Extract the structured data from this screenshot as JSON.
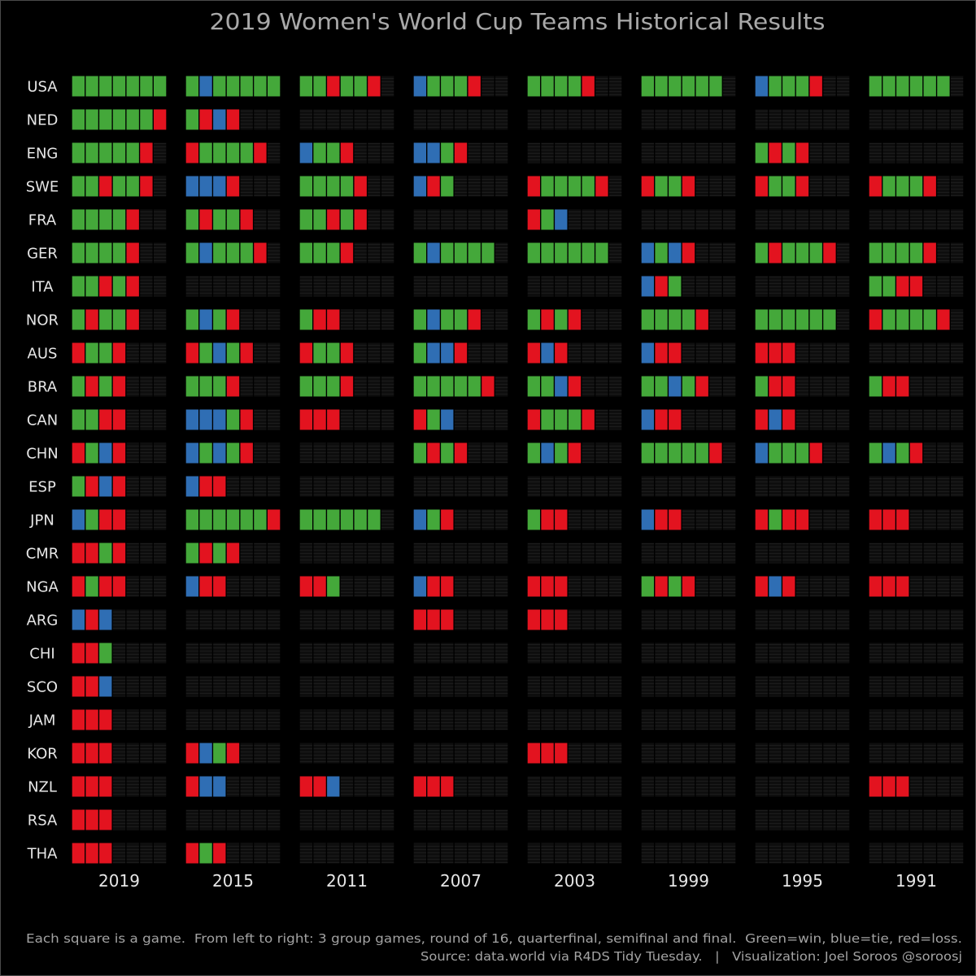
{
  "footer": {
    "note": "Each square is a game.  From left to right: 3 group games, round of 16, quarterfinal, semifinal and final.  Green=win, blue=tie, red=loss.",
    "credit": "Source: data.world via R4DS Tidy Tuesday.   |   Visualization: Joel Soroos @soroosj"
  },
  "colors": {
    "win": "#44a83a",
    "tie": "#2f6eb4",
    "loss": "#e3131f",
    "background": "#000000",
    "title": "#a9a9a9",
    "label": "#e6e6e6",
    "footer": "#a3a3a3"
  },
  "chart_data": {
    "type": "heatmap",
    "title": "2019 Women's World Cup Teams Historical Results",
    "years": [
      "2019",
      "2015",
      "2011",
      "2007",
      "2003",
      "1999",
      "1995",
      "1991"
    ],
    "teams": [
      {
        "name": "USA",
        "results": {
          "2019": [
            "win",
            "win",
            "win",
            "win",
            "win",
            "win",
            "win"
          ],
          "2015": [
            "win",
            "tie",
            "win",
            "win",
            "win",
            "win",
            "win"
          ],
          "2011": [
            "win",
            "win",
            "loss",
            "win",
            "win",
            "loss"
          ],
          "2007": [
            "tie",
            "win",
            "win",
            "win",
            "loss"
          ],
          "2003": [
            "win",
            "win",
            "win",
            "win",
            "loss"
          ],
          "1999": [
            "win",
            "win",
            "win",
            "win",
            "win",
            "win"
          ],
          "1995": [
            "tie",
            "win",
            "win",
            "win",
            "loss"
          ],
          "1991": [
            "win",
            "win",
            "win",
            "win",
            "win",
            "win"
          ]
        }
      },
      {
        "name": "NED",
        "results": {
          "2019": [
            "win",
            "win",
            "win",
            "win",
            "win",
            "win",
            "loss"
          ],
          "2015": [
            "win",
            "loss",
            "tie",
            "loss"
          ]
        }
      },
      {
        "name": "ENG",
        "results": {
          "2019": [
            "win",
            "win",
            "win",
            "win",
            "win",
            "loss"
          ],
          "2015": [
            "loss",
            "win",
            "win",
            "win",
            "win",
            "loss"
          ],
          "2011": [
            "tie",
            "win",
            "win",
            "loss"
          ],
          "2007": [
            "tie",
            "tie",
            "win",
            "loss"
          ],
          "1995": [
            "win",
            "loss",
            "win",
            "loss"
          ]
        }
      },
      {
        "name": "SWE",
        "results": {
          "2019": [
            "win",
            "win",
            "loss",
            "win",
            "win",
            "loss"
          ],
          "2015": [
            "tie",
            "tie",
            "tie",
            "loss"
          ],
          "2011": [
            "win",
            "win",
            "win",
            "win",
            "loss"
          ],
          "2007": [
            "tie",
            "loss",
            "win"
          ],
          "2003": [
            "loss",
            "win",
            "win",
            "win",
            "win",
            "loss"
          ],
          "1999": [
            "loss",
            "win",
            "win",
            "loss"
          ],
          "1995": [
            "loss",
            "win",
            "win",
            "loss"
          ],
          "1991": [
            "loss",
            "win",
            "win",
            "win",
            "loss"
          ]
        }
      },
      {
        "name": "FRA",
        "results": {
          "2019": [
            "win",
            "win",
            "win",
            "win",
            "loss"
          ],
          "2015": [
            "win",
            "loss",
            "win",
            "win",
            "loss"
          ],
          "2011": [
            "win",
            "win",
            "loss",
            "win",
            "loss"
          ],
          "2003": [
            "loss",
            "win",
            "tie"
          ]
        }
      },
      {
        "name": "GER",
        "results": {
          "2019": [
            "win",
            "win",
            "win",
            "win",
            "loss"
          ],
          "2015": [
            "win",
            "tie",
            "win",
            "win",
            "win",
            "loss"
          ],
          "2011": [
            "win",
            "win",
            "win",
            "loss"
          ],
          "2007": [
            "win",
            "tie",
            "win",
            "win",
            "win",
            "win"
          ],
          "2003": [
            "win",
            "win",
            "win",
            "win",
            "win",
            "win"
          ],
          "1999": [
            "tie",
            "win",
            "tie",
            "loss"
          ],
          "1995": [
            "win",
            "loss",
            "win",
            "win",
            "win",
            "loss"
          ],
          "1991": [
            "win",
            "win",
            "win",
            "win",
            "loss"
          ]
        }
      },
      {
        "name": "ITA",
        "results": {
          "2019": [
            "win",
            "win",
            "loss",
            "win",
            "loss"
          ],
          "1999": [
            "tie",
            "loss",
            "win"
          ],
          "1991": [
            "win",
            "win",
            "loss",
            "loss"
          ]
        }
      },
      {
        "name": "NOR",
        "results": {
          "2019": [
            "win",
            "loss",
            "win",
            "win",
            "loss"
          ],
          "2015": [
            "win",
            "tie",
            "win",
            "loss"
          ],
          "2011": [
            "win",
            "loss",
            "loss"
          ],
          "2007": [
            "win",
            "tie",
            "win",
            "win",
            "loss"
          ],
          "2003": [
            "win",
            "loss",
            "win",
            "loss"
          ],
          "1999": [
            "win",
            "win",
            "win",
            "win",
            "loss"
          ],
          "1995": [
            "win",
            "win",
            "win",
            "win",
            "win",
            "win"
          ],
          "1991": [
            "loss",
            "win",
            "win",
            "win",
            "win",
            "loss"
          ]
        }
      },
      {
        "name": "AUS",
        "results": {
          "2019": [
            "loss",
            "win",
            "win",
            "loss"
          ],
          "2015": [
            "loss",
            "win",
            "tie",
            "win",
            "loss"
          ],
          "2011": [
            "loss",
            "win",
            "win",
            "loss"
          ],
          "2007": [
            "win",
            "tie",
            "tie",
            "loss"
          ],
          "2003": [
            "loss",
            "tie",
            "loss"
          ],
          "1999": [
            "tie",
            "loss",
            "loss"
          ],
          "1995": [
            "loss",
            "loss",
            "loss"
          ]
        }
      },
      {
        "name": "BRA",
        "results": {
          "2019": [
            "win",
            "loss",
            "win",
            "loss"
          ],
          "2015": [
            "win",
            "win",
            "win",
            "loss"
          ],
          "2011": [
            "win",
            "win",
            "win",
            "loss"
          ],
          "2007": [
            "win",
            "win",
            "win",
            "win",
            "win",
            "loss"
          ],
          "2003": [
            "win",
            "win",
            "tie",
            "loss"
          ],
          "1999": [
            "win",
            "win",
            "tie",
            "win",
            "loss"
          ],
          "1995": [
            "win",
            "loss",
            "loss"
          ],
          "1991": [
            "win",
            "loss",
            "loss"
          ]
        }
      },
      {
        "name": "CAN",
        "results": {
          "2019": [
            "win",
            "win",
            "loss",
            "loss"
          ],
          "2015": [
            "tie",
            "tie",
            "tie",
            "win",
            "loss"
          ],
          "2011": [
            "loss",
            "loss",
            "loss"
          ],
          "2007": [
            "loss",
            "win",
            "tie"
          ],
          "2003": [
            "loss",
            "win",
            "win",
            "win",
            "loss"
          ],
          "1999": [
            "tie",
            "loss",
            "loss"
          ],
          "1995": [
            "loss",
            "tie",
            "loss"
          ]
        }
      },
      {
        "name": "CHN",
        "results": {
          "2019": [
            "loss",
            "win",
            "tie",
            "loss"
          ],
          "2015": [
            "tie",
            "win",
            "tie",
            "win",
            "loss"
          ],
          "2007": [
            "win",
            "loss",
            "win",
            "loss"
          ],
          "2003": [
            "win",
            "tie",
            "win",
            "loss"
          ],
          "1999": [
            "win",
            "win",
            "win",
            "win",
            "win",
            "loss"
          ],
          "1995": [
            "tie",
            "win",
            "win",
            "win",
            "loss"
          ],
          "1991": [
            "win",
            "tie",
            "win",
            "loss"
          ]
        }
      },
      {
        "name": "ESP",
        "results": {
          "2019": [
            "win",
            "loss",
            "tie",
            "loss"
          ],
          "2015": [
            "tie",
            "loss",
            "loss"
          ]
        }
      },
      {
        "name": "JPN",
        "results": {
          "2019": [
            "tie",
            "win",
            "loss",
            "loss"
          ],
          "2015": [
            "win",
            "win",
            "win",
            "win",
            "win",
            "win",
            "loss"
          ],
          "2011": [
            "win",
            "win",
            "win",
            "win",
            "win",
            "win"
          ],
          "2007": [
            "tie",
            "win",
            "loss"
          ],
          "2003": [
            "win",
            "loss",
            "loss"
          ],
          "1999": [
            "tie",
            "loss",
            "loss"
          ],
          "1995": [
            "loss",
            "win",
            "loss",
            "loss"
          ],
          "1991": [
            "loss",
            "loss",
            "loss"
          ]
        }
      },
      {
        "name": "CMR",
        "results": {
          "2019": [
            "loss",
            "loss",
            "win",
            "loss"
          ],
          "2015": [
            "win",
            "loss",
            "win",
            "loss"
          ]
        }
      },
      {
        "name": "NGA",
        "results": {
          "2019": [
            "loss",
            "win",
            "loss",
            "loss"
          ],
          "2015": [
            "tie",
            "loss",
            "loss"
          ],
          "2011": [
            "loss",
            "loss",
            "win"
          ],
          "2007": [
            "tie",
            "loss",
            "loss"
          ],
          "2003": [
            "loss",
            "loss",
            "loss"
          ],
          "1999": [
            "win",
            "loss",
            "win",
            "loss"
          ],
          "1995": [
            "loss",
            "tie",
            "loss"
          ],
          "1991": [
            "loss",
            "loss",
            "loss"
          ]
        }
      },
      {
        "name": "ARG",
        "results": {
          "2019": [
            "tie",
            "loss",
            "tie"
          ],
          "2007": [
            "loss",
            "loss",
            "loss"
          ],
          "2003": [
            "loss",
            "loss",
            "loss"
          ]
        }
      },
      {
        "name": "CHI",
        "results": {
          "2019": [
            "loss",
            "loss",
            "win"
          ]
        }
      },
      {
        "name": "SCO",
        "results": {
          "2019": [
            "loss",
            "loss",
            "tie"
          ]
        }
      },
      {
        "name": "JAM",
        "results": {
          "2019": [
            "loss",
            "loss",
            "loss"
          ]
        }
      },
      {
        "name": "KOR",
        "results": {
          "2019": [
            "loss",
            "loss",
            "loss"
          ],
          "2015": [
            "loss",
            "tie",
            "win",
            "loss"
          ],
          "2003": [
            "loss",
            "loss",
            "loss"
          ]
        }
      },
      {
        "name": "NZL",
        "results": {
          "2019": [
            "loss",
            "loss",
            "loss"
          ],
          "2015": [
            "loss",
            "tie",
            "tie"
          ],
          "2011": [
            "loss",
            "loss",
            "tie"
          ],
          "2007": [
            "loss",
            "loss",
            "loss"
          ],
          "1991": [
            "loss",
            "loss",
            "loss"
          ]
        }
      },
      {
        "name": "RSA",
        "results": {
          "2019": [
            "loss",
            "loss",
            "loss"
          ]
        }
      },
      {
        "name": "THA",
        "results": {
          "2019": [
            "loss",
            "loss",
            "loss"
          ],
          "2015": [
            "loss",
            "win",
            "loss"
          ]
        }
      }
    ]
  }
}
